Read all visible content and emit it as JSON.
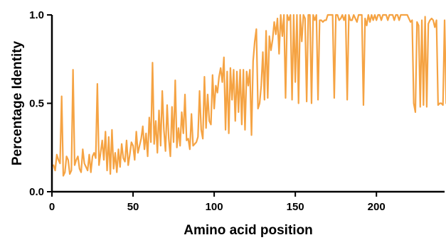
{
  "chart_data": {
    "type": "line",
    "title": "",
    "xlabel": "Amino acid position",
    "ylabel": "Percentage Identity",
    "xlim": [
      0,
      242
    ],
    "ylim": [
      0.0,
      1.0
    ],
    "x_ticks": [
      0,
      50,
      100,
      150,
      200
    ],
    "y_ticks": [
      0.0,
      0.5,
      1.0
    ],
    "x_tick_labels": [
      "0",
      "50",
      "100",
      "150",
      "200"
    ],
    "y_tick_labels": [
      "0.0",
      "0.5",
      "1.0"
    ],
    "grid": false,
    "legend": "none",
    "colors": {
      "line": "#f5a343",
      "axis": "#000000"
    },
    "series": [
      {
        "values": [
          0.15,
          0.12,
          0.21,
          0.18,
          0.16,
          0.54,
          0.09,
          0.11,
          0.2,
          0.18,
          0.1,
          0.12,
          0.69,
          0.15,
          0.18,
          0.2,
          0.13,
          0.11,
          0.24,
          0.16,
          0.14,
          0.12,
          0.21,
          0.11,
          0.2,
          0.22,
          0.19,
          0.61,
          0.15,
          0.22,
          0.29,
          0.18,
          0.34,
          0.12,
          0.31,
          0.1,
          0.35,
          0.13,
          0.22,
          0.11,
          0.24,
          0.14,
          0.27,
          0.19,
          0.17,
          0.29,
          0.15,
          0.21,
          0.28,
          0.26,
          0.18,
          0.34,
          0.22,
          0.26,
          0.3,
          0.37,
          0.24,
          0.33,
          0.2,
          0.42,
          0.28,
          0.73,
          0.27,
          0.4,
          0.22,
          0.46,
          0.26,
          0.57,
          0.35,
          0.23,
          0.49,
          0.3,
          0.2,
          0.48,
          0.28,
          0.63,
          0.25,
          0.36,
          0.26,
          0.45,
          0.33,
          0.55,
          0.29,
          0.3,
          0.24,
          0.44,
          0.26,
          0.27,
          0.28,
          0.31,
          0.57,
          0.35,
          0.3,
          0.65,
          0.36,
          0.55,
          0.4,
          0.38,
          0.66,
          0.47,
          0.6,
          0.56,
          0.65,
          0.7,
          0.62,
          0.76,
          0.35,
          0.68,
          0.33,
          0.7,
          0.52,
          0.69,
          0.4,
          0.68,
          0.45,
          0.69,
          0.38,
          0.69,
          0.35,
          0.68,
          0.6,
          0.69,
          0.32,
          0.74,
          0.85,
          0.92,
          0.47,
          0.5,
          0.6,
          0.79,
          0.52,
          0.91,
          0.53,
          0.88,
          0.8,
          0.86,
          0.96,
          0.89,
          0.98,
          0.78,
          1.0,
          0.88,
          1.0,
          0.53,
          1.0,
          0.97,
          1.0,
          0.52,
          1.0,
          0.62,
          1.0,
          0.5,
          1.0,
          0.85,
          1.0,
          0.98,
          0.51,
          1.0,
          1.0,
          0.5,
          1.0,
          0.97,
          1.0,
          0.52,
          0.97,
          0.97,
          0.96,
          0.97,
          0.97,
          1.0,
          1.0,
          1.0,
          1.0,
          0.53,
          1.0,
          1.0,
          0.97,
          0.98,
          1.0,
          0.97,
          1.0,
          0.52,
          1.0,
          0.97,
          0.97,
          1.0,
          0.98,
          0.96,
          1.0,
          1.0,
          1.0,
          0.49,
          0.98,
          0.94,
          1.0,
          0.96,
          1.0,
          0.97,
          1.0,
          0.97,
          1.0,
          1.0,
          0.97,
          1.0,
          1.0,
          1.0,
          0.97,
          1.0,
          1.0,
          1.0,
          0.97,
          1.0,
          1.0,
          0.97,
          1.0,
          1.0,
          1.0,
          1.0,
          1.0,
          0.98,
          0.96,
          0.97,
          0.5,
          0.45,
          0.96,
          0.94,
          0.48,
          0.97,
          0.49,
          0.99,
          0.48,
          0.95,
          0.97,
          0.98,
          0.97,
          0.93,
          0.97,
          0.49,
          0.5,
          0.5,
          0.49,
          0.97,
          0.5,
          0.5,
          0.5,
          0.97,
          0.96,
          0.48,
          0.97,
          1.0,
          1.0
        ]
      }
    ]
  }
}
